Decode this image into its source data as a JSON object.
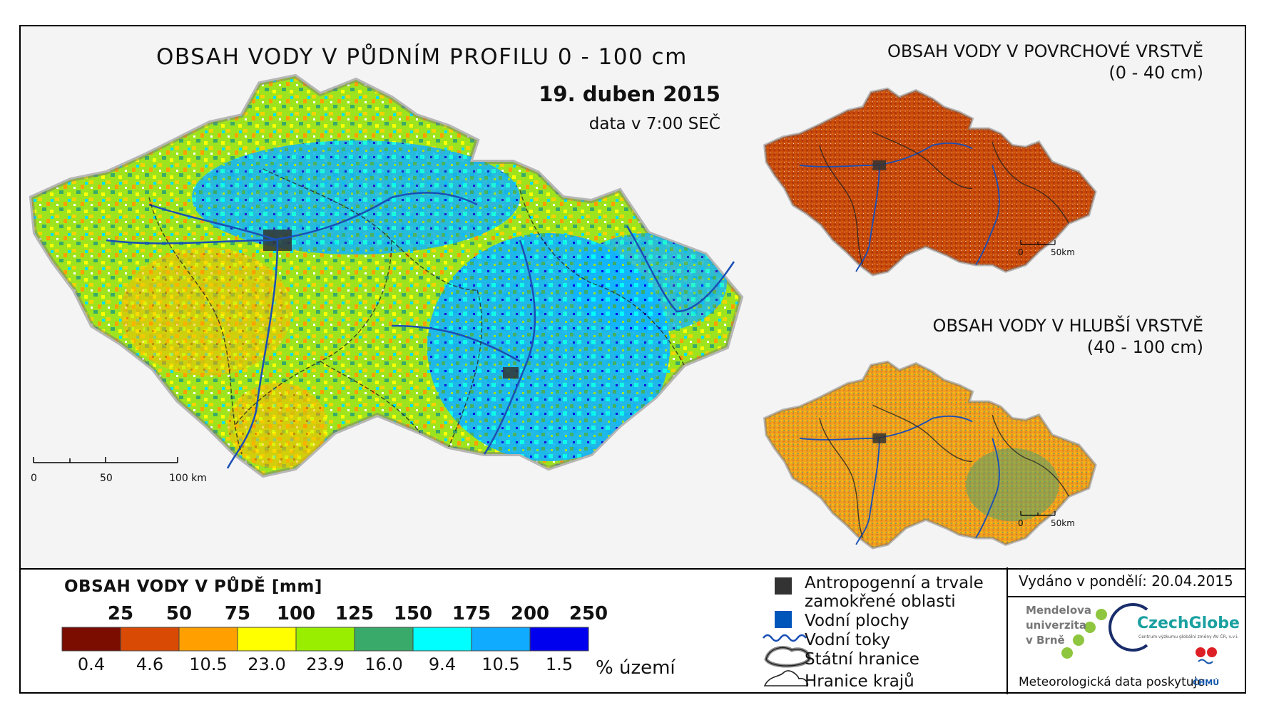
{
  "main_map": {
    "title": "OBSAH VODY V PŮDNÍM PROFILU 0 - 100 cm",
    "date": "19. duben 2015",
    "subtitle": "data v 7:00 SEČ",
    "scale": {
      "labels": [
        "0",
        "50",
        "100 km"
      ]
    }
  },
  "surface_map": {
    "title_line1": "OBSAH VODY V POVRCHOVÉ VRSTVĚ",
    "title_line2": "(0 - 40 cm)",
    "scale": {
      "labels": [
        "0",
        "50km"
      ]
    },
    "dominant_color": "#c84a0a"
  },
  "deep_map": {
    "title_line1": "OBSAH VODY V HLUBŠÍ VRSTVĚ",
    "title_line2": "(40 - 100 cm)",
    "scale": {
      "labels": [
        "0",
        "50km"
      ]
    },
    "dominant_color": "#f0a020"
  },
  "legend": {
    "title": "OBSAH VODY V PŮDĚ [mm]",
    "thresholds": [
      "25",
      "50",
      "75",
      "100",
      "125",
      "150",
      "175",
      "200",
      "250"
    ],
    "classes": [
      {
        "color": "#7b0c00",
        "percent": "0.4"
      },
      {
        "color": "#d94a05",
        "percent": "4.6"
      },
      {
        "color": "#ffa000",
        "percent": "10.5"
      },
      {
        "color": "#ffff00",
        "percent": "23.0"
      },
      {
        "color": "#99ee00",
        "percent": "23.9"
      },
      {
        "color": "#39aa6a",
        "percent": "16.0"
      },
      {
        "color": "#00ffff",
        "percent": "9.4"
      },
      {
        "color": "#10aaff",
        "percent": "10.5"
      },
      {
        "color": "#0000ee",
        "percent": "1.5"
      }
    ],
    "percent_unit": "% území",
    "items": [
      {
        "label_line1": "Antropogenní a trvale",
        "label_line2": "zamokřené oblasti",
        "symbol": "dark-square",
        "color": "#333333"
      },
      {
        "label_line1": "Vodní plochy",
        "symbol": "blue-square",
        "color": "#0055bb"
      },
      {
        "label_line1": "Vodní toky",
        "symbol": "river-line",
        "color": "#1a4fb5"
      },
      {
        "label_line1": "Státní hranice",
        "symbol": "state-border"
      },
      {
        "label_line1": "Hranice krajů",
        "symbol": "region-border"
      }
    ]
  },
  "footer": {
    "issued": "Vydáno v pondělí: 20.04.2015",
    "mendel_line1": "Mendelova",
    "mendel_line2": "univerzita",
    "mendel_line3": "v Brně",
    "czechglobe": "CzechGlobe",
    "czechglobe_sub": "Centrum výzkumu globální změny AV ČR, v.v.i.",
    "provider": "Meteorologická data poskytuje:",
    "chmu": "ČHMÚ"
  }
}
